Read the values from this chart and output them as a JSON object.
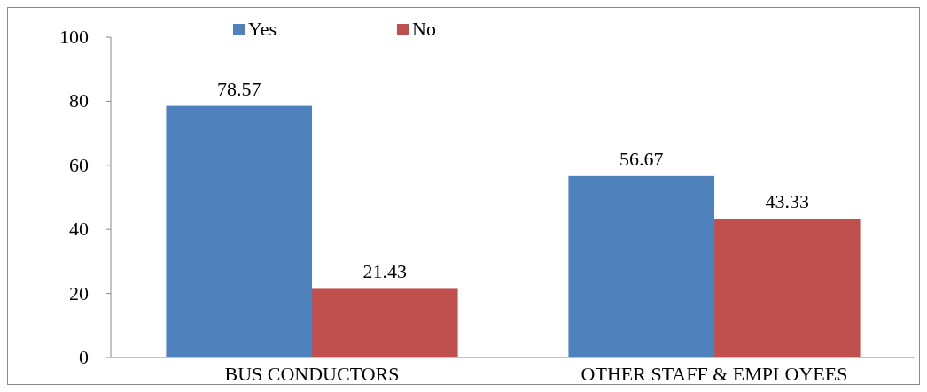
{
  "chart_data": {
    "type": "bar",
    "categories": [
      "BUS CONDUCTORS",
      "OTHER STAFF & EMPLOYEES"
    ],
    "series": [
      {
        "name": "Yes",
        "color": "#4f81bd",
        "values": [
          78.57,
          56.67
        ]
      },
      {
        "name": "No",
        "color": "#c0504d",
        "values": [
          21.43,
          43.33
        ]
      }
    ],
    "ylim": [
      0,
      100
    ],
    "yticks": [
      0,
      20,
      40,
      60,
      80,
      100
    ],
    "data_labels": true,
    "legend": "top",
    "grid": false
  }
}
